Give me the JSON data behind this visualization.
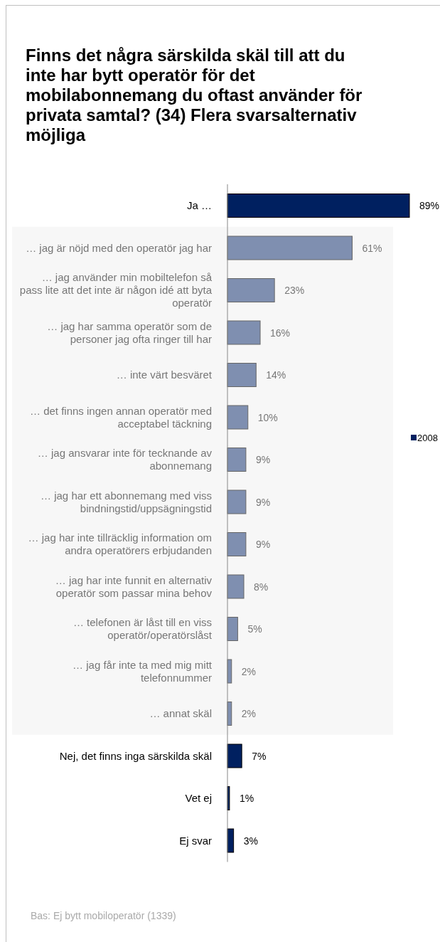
{
  "chart_data": {
    "type": "bar",
    "orientation": "horizontal",
    "title": "Finns det några särskilda skäl till att du inte har bytt operatör för det mobilabonnemang du oftast använder för privata samtal? (34) Flera svarsalternativ möjliga",
    "categories": [
      "Ja …",
      "… jag är nöjd med den operatör jag har",
      "… jag använder min mobiltelefon så pass lite att det inte är någon idé att byta operatör",
      "… jag har samma operatör som de personer jag ofta ringer till har",
      "… inte värt besväret",
      "… det finns ingen annan operatör med acceptabel täckning",
      "… jag ansvarar inte för tecknande av abonnemang",
      "… jag har ett abonnemang med viss bindningstid/uppsägningstid",
      "… jag har inte tillräcklig information om andra operatörers erbjudanden",
      "… jag har inte funnit en alternativ operatör som passar mina behov",
      "… telefonen är låst till en viss operatör/operatörslåst",
      "… jag får inte ta med mig mitt telefonnummer",
      "… annat skäl",
      "Nej, det finns inga särskilda skäl",
      "Vet ej",
      "Ej svar"
    ],
    "series": [
      {
        "name": "2008",
        "color": "#002060",
        "colors": [
          "#002060",
          "#7f8fb0",
          "#7f8fb0",
          "#7f8fb0",
          "#7f8fb0",
          "#7f8fb0",
          "#7f8fb0",
          "#7f8fb0",
          "#7f8fb0",
          "#7f8fb0",
          "#7f8fb0",
          "#7f8fb0",
          "#7f8fb0",
          "#002060",
          "#002060",
          "#002060"
        ],
        "values": [
          89,
          61,
          23,
          16,
          14,
          10,
          9,
          9,
          9,
          8,
          5,
          2,
          2,
          7,
          1,
          3
        ],
        "value_labels": [
          "89%",
          "61%",
          "23%",
          "16%",
          "14%",
          "10%",
          "9%",
          "9%",
          "9%",
          "8%",
          "5%",
          "2%",
          "2%",
          "7%",
          "1%",
          "3%"
        ]
      }
    ],
    "tick_labels": "y",
    "legend": "right",
    "bands": [
      {
        "axis": "y",
        "from": "… jag är nöjd med den operatör jag har",
        "to": "… annat skäl",
        "color": "#f7f7f7"
      }
    ],
    "annotations": [
      "Bas: Ej bytt mobiloperatör (1339)"
    ]
  }
}
